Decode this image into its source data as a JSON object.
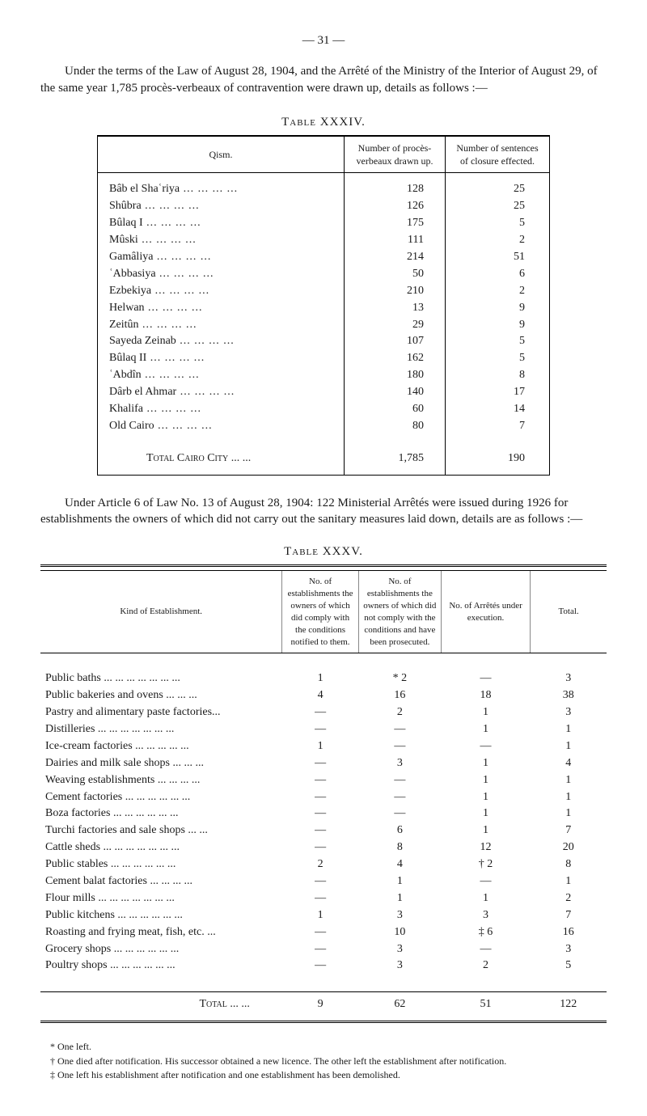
{
  "page_number": "— 31 —",
  "intro": "Under the terms of the Law of August 28, 1904, and the Arrêté of the Ministry of the Interior of August 29, of the same year 1,785 procès-verbeaux of contravention were drawn up, details as follows :—",
  "table34": {
    "caption": "Table XXXIV.",
    "headers": [
      "Qism.",
      "Number of procès-verbeaux drawn up.",
      "Number of sentences of closure effected."
    ],
    "rows": [
      {
        "qism": "Bâb el Shaʿriya",
        "pv": "128",
        "closures": "25"
      },
      {
        "qism": "Shûbra",
        "pv": "126",
        "closures": "25"
      },
      {
        "qism": "Bûlaq I",
        "pv": "175",
        "closures": "5"
      },
      {
        "qism": "Mûski",
        "pv": "111",
        "closures": "2"
      },
      {
        "qism": "Gamâliya",
        "pv": "214",
        "closures": "51"
      },
      {
        "qism": "ʿAbbasiya",
        "pv": "50",
        "closures": "6"
      },
      {
        "qism": "Ezbekiya",
        "pv": "210",
        "closures": "2"
      },
      {
        "qism": "Helwan",
        "pv": "13",
        "closures": "9"
      },
      {
        "qism": "Zeitûn",
        "pv": "29",
        "closures": "9"
      },
      {
        "qism": "Sayeda Zeinab",
        "pv": "107",
        "closures": "5"
      },
      {
        "qism": "Bûlaq II",
        "pv": "162",
        "closures": "5"
      },
      {
        "qism": "ʿAbdîn",
        "pv": "180",
        "closures": "8"
      },
      {
        "qism": "Dârb el Ahmar",
        "pv": "140",
        "closures": "17"
      },
      {
        "qism": "Khalifa",
        "pv": "60",
        "closures": "14"
      },
      {
        "qism": "Old Cairo",
        "pv": "80",
        "closures": "7"
      }
    ],
    "total": {
      "label": "Total Cairo City ...  ...",
      "pv": "1,785",
      "closures": "190"
    }
  },
  "intro2": "Under Article 6 of Law No. 13 of August 28, 1904: 122 Ministerial Arrêtés were issued during 1926 for establishments the owners of which did not carry out the sanitary measures laid down, details are as follows :—",
  "table35": {
    "caption": "Table XXXV.",
    "headers": [
      "Kind of Establishment.",
      "No. of establishments the owners of which did comply with the conditions notified to them.",
      "No. of establishments the owners of which did not comply with the conditions and have been prosecuted.",
      "No. of Arrêtés under execution.",
      "Total."
    ],
    "rows": [
      {
        "kind": "Public baths ...  ...  ...  ...  ...  ...  ...",
        "c1": "1",
        "c2": "* 2",
        "c3": "—",
        "tot": "3"
      },
      {
        "kind": "Public bakeries and ovens   ...  ...  ...",
        "c1": "4",
        "c2": "16",
        "c3": "18",
        "tot": "38"
      },
      {
        "kind": "Pastry and alimentary paste factories...",
        "c1": "—",
        "c2": "2",
        "c3": "1",
        "tot": "3"
      },
      {
        "kind": "Distilleries   ...  ...  ...  ...  ...  ...  ...",
        "c1": "—",
        "c2": "—",
        "c3": "1",
        "tot": "1"
      },
      {
        "kind": "Ice-cream factories   ...  ...  ...  ...  ...",
        "c1": "1",
        "c2": "—",
        "c3": "—",
        "tot": "1"
      },
      {
        "kind": "Dairies and milk sale shops   ...  ...  ...",
        "c1": "—",
        "c2": "3",
        "c3": "1",
        "tot": "4"
      },
      {
        "kind": "Weaving establishments   ...  ...  ...  ...",
        "c1": "—",
        "c2": "—",
        "c3": "1",
        "tot": "1"
      },
      {
        "kind": "Cement factories ...  ...  ...  ...  ...  ...",
        "c1": "—",
        "c2": "—",
        "c3": "1",
        "tot": "1"
      },
      {
        "kind": "Boza factories     ...  ...  ...  ...  ...  ...",
        "c1": "—",
        "c2": "—",
        "c3": "1",
        "tot": "1"
      },
      {
        "kind": "Turchi factories and sale shops   ...  ...",
        "c1": "—",
        "c2": "6",
        "c3": "1",
        "tot": "7"
      },
      {
        "kind": "Cattle sheds ...  ...  ...  ...  ...  ...  ...",
        "c1": "—",
        "c2": "8",
        "c3": "12",
        "tot": "20"
      },
      {
        "kind": "Public stables   ...  ...  ...  ...  ...  ...",
        "c1": "2",
        "c2": "4",
        "c3": "† 2",
        "tot": "8"
      },
      {
        "kind": "Cement balat factories     ...  ...  ...  ...",
        "c1": "—",
        "c2": "1",
        "c3": "—",
        "tot": "1"
      },
      {
        "kind": "Flour mills   ...  ...  ...  ...  ...  ...  ...",
        "c1": "—",
        "c2": "1",
        "c3": "1",
        "tot": "2"
      },
      {
        "kind": "Public kitchens   ...  ...  ...  ...  ...  ...",
        "c1": "1",
        "c2": "3",
        "c3": "3",
        "tot": "7"
      },
      {
        "kind": "Roasting and frying meat, fish, etc.   ...",
        "c1": "—",
        "c2": "10",
        "c3": "‡ 6",
        "tot": "16"
      },
      {
        "kind": "Grocery shops   ...  ...  ...  ...  ...  ...",
        "c1": "—",
        "c2": "3",
        "c3": "—",
        "tot": "3"
      },
      {
        "kind": "Poultry shops   ...  ...  ...  ...  ...  ...",
        "c1": "—",
        "c2": "3",
        "c3": "2",
        "tot": "5"
      }
    ],
    "total": {
      "label": "Total  ...  ...",
      "c1": "9",
      "c2": "62",
      "c3": "51",
      "tot": "122"
    }
  },
  "footnotes": {
    "star": "* One left.",
    "dagger": "† One died after notification. His successor obtained a new licence. The other left the establishment after notification.",
    "ddagger": "‡ One left his establishment after notification and one establishment has been demolished."
  }
}
